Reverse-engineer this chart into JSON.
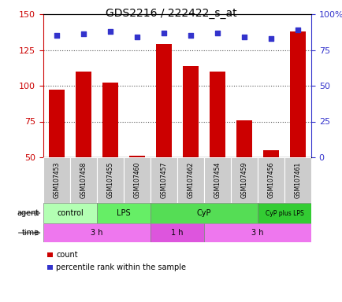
{
  "title": "GDS2216 / 222422_s_at",
  "samples": [
    "GSM107453",
    "GSM107458",
    "GSM107455",
    "GSM107460",
    "GSM107457",
    "GSM107462",
    "GSM107454",
    "GSM107459",
    "GSM107456",
    "GSM107461"
  ],
  "counts": [
    97,
    110,
    102,
    51,
    129,
    114,
    110,
    76,
    55,
    138
  ],
  "percentile_ranks": [
    85,
    86,
    88,
    84,
    87,
    85,
    87,
    84,
    83,
    89
  ],
  "ylim_left": [
    50,
    150
  ],
  "ylim_right": [
    0,
    100
  ],
  "yticks_left": [
    50,
    75,
    100,
    125,
    150
  ],
  "yticks_right": [
    0,
    25,
    50,
    75,
    100
  ],
  "ytick_labels_right": [
    "0",
    "25",
    "50",
    "75",
    "100%"
  ],
  "bar_color": "#cc0000",
  "dot_color": "#3333cc",
  "agent_labels": [
    {
      "label": "control",
      "start": 0,
      "end": 2,
      "color": "#b3ffb3"
    },
    {
      "label": "LPS",
      "start": 2,
      "end": 4,
      "color": "#66ee66"
    },
    {
      "label": "CyP",
      "start": 4,
      "end": 8,
      "color": "#55dd55"
    },
    {
      "label": "CyP plus LPS",
      "start": 8,
      "end": 10,
      "color": "#33cc33"
    }
  ],
  "time_labels": [
    {
      "label": "3 h",
      "start": 0,
      "end": 4,
      "color": "#ee77ee"
    },
    {
      "label": "1 h",
      "start": 4,
      "end": 6,
      "color": "#dd55dd"
    },
    {
      "label": "3 h",
      "start": 6,
      "end": 10,
      "color": "#ee77ee"
    }
  ],
  "legend_count_color": "#cc0000",
  "legend_pct_color": "#3333cc",
  "tick_color_left": "#cc0000",
  "tick_color_right": "#3333cc",
  "sample_bg_color": "#cccccc",
  "grid_dotted_color": "#555555",
  "bar_bottom": 50,
  "grid_lines": [
    75,
    100,
    125
  ]
}
